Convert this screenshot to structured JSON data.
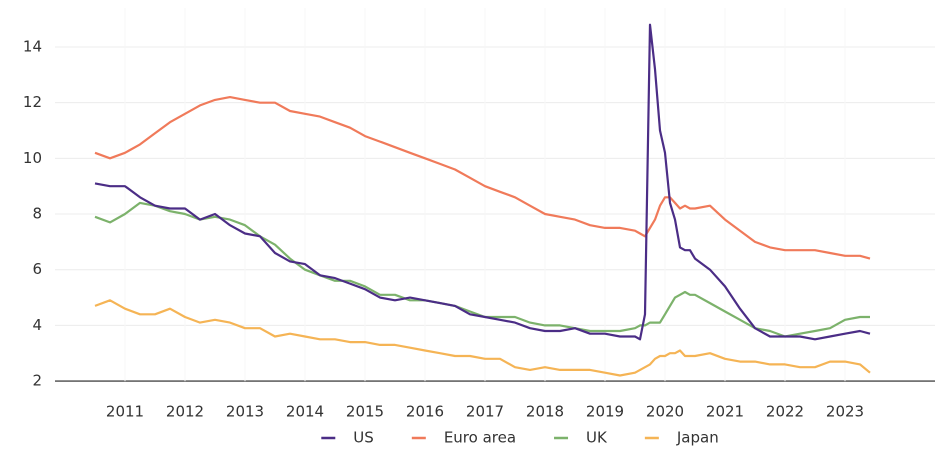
{
  "chart_data": {
    "type": "line",
    "x": [
      2011.0,
      2011.25,
      2011.5,
      2011.75,
      2012.0,
      2012.25,
      2012.5,
      2012.75,
      2013.0,
      2013.25,
      2013.5,
      2013.75,
      2014.0,
      2014.25,
      2014.5,
      2014.75,
      2015.0,
      2015.25,
      2015.5,
      2015.75,
      2016.0,
      2016.25,
      2016.5,
      2016.75,
      2017.0,
      2017.25,
      2017.5,
      2017.75,
      2018.0,
      2018.25,
      2018.5,
      2018.75,
      2019.0,
      2019.25,
      2019.5,
      2019.75,
      2020.0,
      2020.083,
      2020.167,
      2020.25,
      2020.333,
      2020.417,
      2020.5,
      2020.583,
      2020.667,
      2020.75,
      2020.833,
      2020.917,
      2021.0,
      2021.25,
      2021.5,
      2021.75,
      2022.0,
      2022.25,
      2022.5,
      2022.75,
      2023.0,
      2023.25,
      2023.5,
      2023.75,
      2023.917
    ],
    "series": [
      {
        "name": "US",
        "color": "#4b2d86",
        "values": [
          9.1,
          9.0,
          9.0,
          8.6,
          8.3,
          8.2,
          8.2,
          7.8,
          8.0,
          7.6,
          7.3,
          7.2,
          6.6,
          6.3,
          6.2,
          5.8,
          5.7,
          5.5,
          5.3,
          5.0,
          4.9,
          5.0,
          4.9,
          4.8,
          4.7,
          4.4,
          4.3,
          4.2,
          4.1,
          3.9,
          3.8,
          3.8,
          3.9,
          3.7,
          3.7,
          3.6,
          3.6,
          3.5,
          4.4,
          14.8,
          13.2,
          11.0,
          10.2,
          8.4,
          7.8,
          6.8,
          6.7,
          6.7,
          6.4,
          6.0,
          5.4,
          4.6,
          3.9,
          3.6,
          3.6,
          3.6,
          3.5,
          3.6,
          3.7,
          3.8,
          3.7
        ]
      },
      {
        "name": "Euro area",
        "color": "#f07a5a",
        "values": [
          10.2,
          10.0,
          10.2,
          10.5,
          10.9,
          11.3,
          11.6,
          11.9,
          12.1,
          12.2,
          12.1,
          12.0,
          12.0,
          11.7,
          11.6,
          11.5,
          11.3,
          11.1,
          10.8,
          10.6,
          10.4,
          10.2,
          10.0,
          9.8,
          9.6,
          9.3,
          9.0,
          8.8,
          8.6,
          8.3,
          8.0,
          7.9,
          7.8,
          7.6,
          7.5,
          7.5,
          7.4,
          7.3,
          7.2,
          7.5,
          7.8,
          8.3,
          8.6,
          8.6,
          8.4,
          8.2,
          8.3,
          8.2,
          8.2,
          8.3,
          7.8,
          7.4,
          7.0,
          6.8,
          6.7,
          6.7,
          6.7,
          6.6,
          6.5,
          6.5,
          6.4
        ]
      },
      {
        "name": "UK",
        "color": "#7cb26b",
        "values": [
          7.9,
          7.7,
          8.0,
          8.4,
          8.3,
          8.1,
          8.0,
          7.8,
          7.9,
          7.8,
          7.6,
          7.2,
          6.9,
          6.4,
          6.0,
          5.8,
          5.6,
          5.6,
          5.4,
          5.1,
          5.1,
          4.9,
          4.9,
          4.8,
          4.7,
          4.5,
          4.3,
          4.3,
          4.3,
          4.1,
          4.0,
          4.0,
          3.9,
          3.8,
          3.8,
          3.8,
          3.9,
          4.0,
          4.0,
          4.1,
          4.1,
          4.1,
          4.4,
          4.7,
          5.0,
          5.1,
          5.2,
          5.1,
          5.1,
          4.8,
          4.5,
          4.2,
          3.9,
          3.8,
          3.6,
          3.7,
          3.8,
          3.9,
          4.2,
          4.3,
          4.3
        ]
      },
      {
        "name": "Japan",
        "color": "#f5b455",
        "values": [
          4.7,
          4.9,
          4.6,
          4.4,
          4.4,
          4.6,
          4.3,
          4.1,
          4.2,
          4.1,
          3.9,
          3.9,
          3.6,
          3.7,
          3.6,
          3.5,
          3.5,
          3.4,
          3.4,
          3.3,
          3.3,
          3.2,
          3.1,
          3.0,
          2.9,
          2.9,
          2.8,
          2.8,
          2.5,
          2.4,
          2.5,
          2.4,
          2.4,
          2.4,
          2.3,
          2.2,
          2.3,
          2.4,
          2.5,
          2.6,
          2.8,
          2.9,
          2.9,
          3.0,
          3.0,
          3.1,
          2.9,
          2.9,
          2.9,
          3.0,
          2.8,
          2.7,
          2.7,
          2.6,
          2.6,
          2.5,
          2.5,
          2.7,
          2.7,
          2.6,
          2.3
        ]
      }
    ],
    "xlim": [
      2010.5,
      2025
    ],
    "xticks": [
      {
        "value": 2011.5,
        "label": "2011"
      },
      {
        "value": 2012.5,
        "label": "2012"
      },
      {
        "value": 2013.5,
        "label": "2013"
      },
      {
        "value": 2014.5,
        "label": "2014"
      },
      {
        "value": 2015.5,
        "label": "2015"
      },
      {
        "value": 2016.5,
        "label": "2016"
      },
      {
        "value": 2017.5,
        "label": "2017"
      },
      {
        "value": 2018.5,
        "label": "2018"
      },
      {
        "value": 2019.5,
        "label": "2019"
      },
      {
        "value": 2020.5,
        "label": "2020"
      },
      {
        "value": 2021.5,
        "label": "2021"
      },
      {
        "value": 2022.5,
        "label": "2022"
      },
      {
        "value": 2023.5,
        "label": "2023"
      }
    ],
    "ylim": [
      1.5,
      15.4
    ],
    "yticks": [
      2,
      4,
      6,
      8,
      10,
      12,
      14
    ],
    "grid": true,
    "legend": "bottom"
  }
}
